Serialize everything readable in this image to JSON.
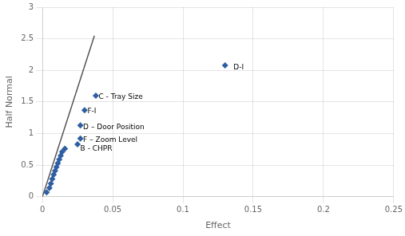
{
  "chart_data": {
    "type": "scatter",
    "title": "",
    "xlabel": "Effect",
    "ylabel": "Half Normal",
    "xlim": [
      0,
      0.25
    ],
    "ylim": [
      0,
      3
    ],
    "xticks": [
      0,
      0.05,
      0.1,
      0.15,
      0.2,
      0.25
    ],
    "yticks": [
      0,
      0.5,
      1,
      1.5,
      2,
      2.5,
      3
    ],
    "grid": true,
    "series": [
      {
        "type": "scatter",
        "color": "#2E5FA3",
        "marker": "diamond",
        "x": [
          0.003,
          0.005,
          0.006,
          0.007,
          0.008,
          0.009,
          0.01,
          0.011,
          0.012,
          0.013,
          0.014,
          0.016,
          0.025,
          0.027,
          0.027,
          0.03,
          0.038,
          0.13
        ],
        "values": [
          0.07,
          0.14,
          0.21,
          0.28,
          0.35,
          0.41,
          0.47,
          0.53,
          0.59,
          0.65,
          0.71,
          0.76,
          0.83,
          0.92,
          1.13,
          1.37,
          1.6,
          2.08
        ]
      },
      {
        "type": "line",
        "color": "#555555",
        "line_style": "solid",
        "x": [
          0,
          0.037
        ],
        "values": [
          0,
          2.55
        ]
      }
    ],
    "annotations": [
      {
        "text": "B - CHPR",
        "x": 0.027,
        "y": 0.755
      },
      {
        "text": "F – Zoom Level",
        "x": 0.029,
        "y": 0.895
      },
      {
        "text": "D – Door Position",
        "x": 0.029,
        "y": 1.105
      },
      {
        "text": "F-I",
        "x": 0.032,
        "y": 1.35
      },
      {
        "text": "C - Tray Size",
        "x": 0.04,
        "y": 1.575
      },
      {
        "text": "D-I",
        "x": 0.136,
        "y": 2.05
      }
    ]
  }
}
